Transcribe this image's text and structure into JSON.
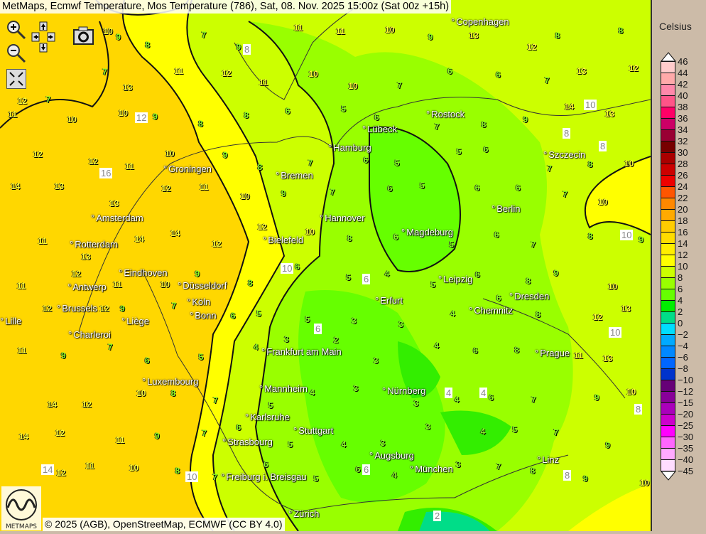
{
  "title": "MetMaps, Ecmwf Temperature, Mos Temperature (786), Sat, 08. Nov. 2025 15:00z (Sat 00z +15h)",
  "controls": {
    "zoom_in": "zoom-in-icon",
    "zoom_out": "zoom-out-icon",
    "pan": "pan-arrows-icon",
    "screenshot": "camera-icon",
    "fullscreen": "fullscreen-icon"
  },
  "copyright": "© 2025 (AGB), OpenStreetMap, ECMWF (CC BY 4.0)",
  "logo_text": "METMAPS",
  "legend": {
    "title": "Celsius",
    "labels": [
      "46",
      "44",
      "42",
      "40",
      "38",
      "36",
      "34",
      "32",
      "30",
      "28",
      "26",
      "24",
      "22",
      "20",
      "18",
      "16",
      "14",
      "12",
      "10",
      "8",
      "6",
      "4",
      "2",
      "0",
      "−2",
      "−4",
      "−6",
      "−8",
      "−10",
      "−12",
      "−15",
      "−20",
      "−25",
      "−30",
      "−35",
      "−40",
      "−45"
    ],
    "colors": [
      "#ffcccc",
      "#ffaaaa",
      "#ff88aa",
      "#ff5588",
      "#ff0066",
      "#cc0066",
      "#990033",
      "#770000",
      "#aa0000",
      "#cc0000",
      "#ee0000",
      "#ff5500",
      "#ff8800",
      "#ffaa00",
      "#ffcc00",
      "#ffdd00",
      "#ffee00",
      "#ffff00",
      "#ccff00",
      "#99ff00",
      "#66ff00",
      "#00ee00",
      "#00dd88",
      "#00ddff",
      "#00aaff",
      "#0088ff",
      "#0066ff",
      "#0033cc",
      "#660077",
      "#880099",
      "#aa00bb",
      "#cc00cc",
      "#ff00ff",
      "#ff66ff",
      "#ffaaff",
      "#ffddff"
    ]
  },
  "cities": [
    "Copenhagen",
    "Rostock",
    "Lübeck",
    "Hamburg",
    "Szczecin",
    "Groningen",
    "Bremen",
    "Amsterdam",
    "Hannover",
    "Berlin",
    "Bielefeld",
    "Magdeburg",
    "Rotterdam",
    "Eindhoven",
    "Düsseldorf",
    "Antwerp",
    "Leipzig",
    "Köln",
    "Bonn",
    "Brussels",
    "Erfurt",
    "Chemnitz",
    "Dresden",
    "Liège",
    "Lille",
    "Charleroi",
    "Prague",
    "Frankfurt am Main",
    "Luxembourg",
    "Mannheim",
    "Nürnberg",
    "Karlsruhe",
    "Stuttgart",
    "Strasbourg",
    "Augsburg",
    "München",
    "Linz",
    "Freiburg i. Breisgau",
    "Zürich"
  ],
  "stations": [
    "12",
    "10",
    "9",
    "8",
    "7",
    "9",
    "11",
    "11",
    "10",
    "9",
    "13",
    "12",
    "8",
    "8",
    "7",
    "7",
    "13",
    "11",
    "12",
    "11",
    "10",
    "10",
    "7",
    "6",
    "6",
    "7",
    "13",
    "12",
    "11",
    "10",
    "10",
    "9",
    "8",
    "8",
    "6",
    "5",
    "6",
    "7",
    "8",
    "9",
    "14",
    "13",
    "12",
    "12",
    "11",
    "10",
    "9",
    "8",
    "7",
    "6",
    "5",
    "5",
    "6",
    "7",
    "8",
    "10",
    "14",
    "13",
    "13",
    "12",
    "11",
    "10",
    "9",
    "7",
    "6",
    "5",
    "6",
    "6",
    "7",
    "10",
    "11",
    "13",
    "14",
    "14",
    "12",
    "12",
    "10",
    "8",
    "6",
    "5",
    "6",
    "7",
    "8",
    "9",
    "11",
    "12",
    "11",
    "10",
    "9",
    "8",
    "6",
    "5",
    "4",
    "5",
    "6",
    "8",
    "9",
    "10",
    "12",
    "12",
    "9",
    "7",
    "6",
    "5",
    "5",
    "3",
    "3",
    "4",
    "6",
    "8",
    "12",
    "13",
    "11",
    "9",
    "7",
    "6",
    "5",
    "4",
    "3",
    "2",
    "3",
    "4",
    "6",
    "8",
    "11",
    "13",
    "14",
    "12",
    "10",
    "8",
    "7",
    "5",
    "4",
    "3",
    "3",
    "4",
    "6",
    "7",
    "9",
    "10",
    "14",
    "12",
    "11",
    "9",
    "7",
    "6",
    "5",
    "4",
    "3",
    "3",
    "4",
    "5",
    "7",
    "9",
    "12",
    "11",
    "10",
    "8",
    "7",
    "6",
    "5",
    "6",
    "4",
    "3",
    "7",
    "8",
    "9",
    "10"
  ],
  "boxed_labels": [
    "8",
    "12",
    "16",
    "8",
    "10",
    "10",
    "10",
    "6",
    "6",
    "4",
    "4",
    "2",
    "8",
    "8",
    "10",
    "14",
    "10",
    "6",
    "8"
  ]
}
